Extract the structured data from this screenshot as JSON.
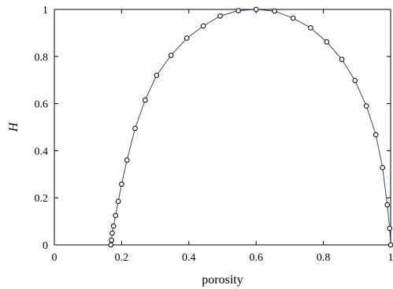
{
  "chart_data": {
    "type": "line",
    "title": "",
    "xlabel": "porosity",
    "ylabel": "H",
    "xlim": [
      0,
      1
    ],
    "ylim": [
      0,
      1
    ],
    "x_ticks": [
      "0",
      "0.2",
      "0.4",
      "0.6",
      "0.8",
      "1"
    ],
    "y_ticks": [
      "0",
      "0.2",
      "0.4",
      "0.6",
      "0.8",
      "1"
    ],
    "grid": false,
    "legend": "none",
    "colors": {
      "line": "#2f4a7a",
      "marker_edge": "#000000",
      "marker_fill": "#ffffff",
      "axes": "#000000"
    },
    "series": [
      {
        "marker": "open-circle",
        "x": [
          0.168,
          0.17,
          0.172,
          0.176,
          0.182,
          0.19,
          0.2,
          0.216,
          0.24,
          0.27,
          0.304,
          0.347,
          0.394,
          0.443,
          0.493,
          0.547,
          0.6,
          0.655,
          0.71,
          0.762,
          0.81,
          0.855,
          0.894,
          0.928,
          0.956,
          0.976,
          0.99,
          0.997,
          1.0
        ],
        "y": [
          0.0,
          0.02,
          0.05,
          0.08,
          0.125,
          0.185,
          0.258,
          0.36,
          0.495,
          0.615,
          0.72,
          0.805,
          0.878,
          0.93,
          0.972,
          0.995,
          1.0,
          0.993,
          0.963,
          0.922,
          0.862,
          0.788,
          0.698,
          0.59,
          0.468,
          0.328,
          0.17,
          0.07,
          0.0
        ]
      }
    ]
  }
}
